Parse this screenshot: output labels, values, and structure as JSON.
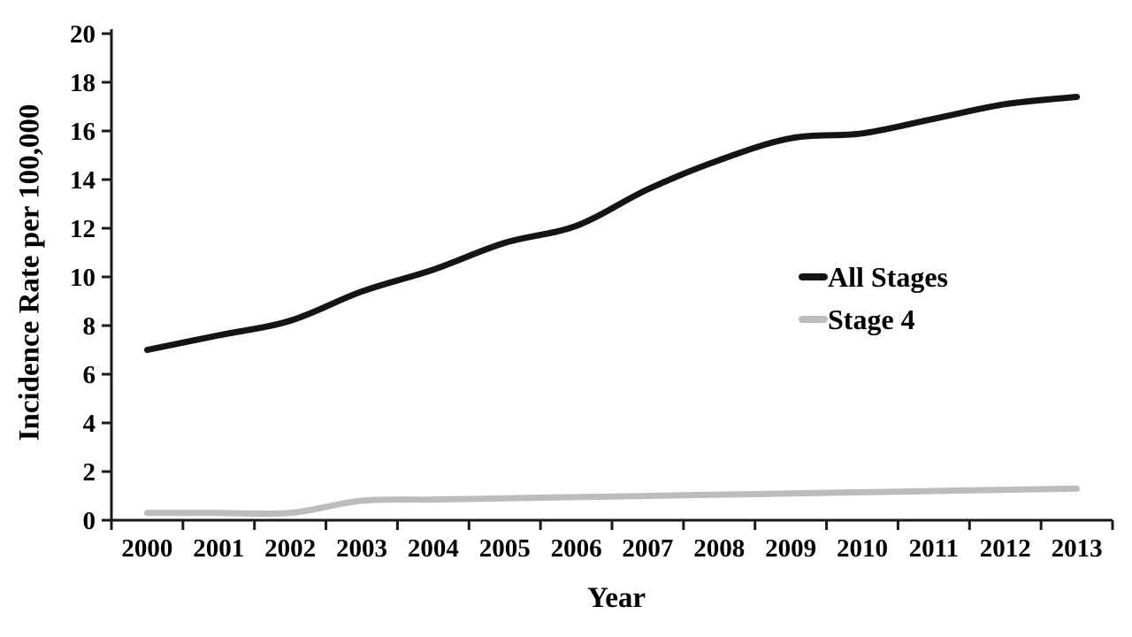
{
  "figure": {
    "background_color": "#ffffff",
    "axis_color": "#1a1a1a"
  },
  "chart_data": {
    "type": "line",
    "title": "",
    "xlabel": "Year",
    "ylabel": "Incidence Rate per 100,000",
    "x": [
      "2000",
      "2001",
      "2002",
      "2003",
      "2004",
      "2005",
      "2006",
      "2007",
      "2008",
      "2009",
      "2010",
      "2011",
      "2012",
      "2013"
    ],
    "series": [
      {
        "name": "All Stages",
        "color": "#141414",
        "values": [
          7.0,
          7.6,
          8.2,
          9.4,
          10.3,
          11.4,
          12.1,
          13.6,
          14.8,
          15.7,
          15.9,
          16.5,
          17.1,
          17.4
        ]
      },
      {
        "name": "Stage 4",
        "color": "#bcbcbc",
        "values": [
          0.3,
          0.3,
          0.3,
          0.8,
          0.85,
          0.9,
          0.95,
          1.0,
          1.05,
          1.1,
          1.15,
          1.2,
          1.25,
          1.3
        ]
      }
    ],
    "ylim": [
      0,
      20
    ],
    "ytick_step": 2,
    "grid": false,
    "legend_position": "right-center"
  }
}
